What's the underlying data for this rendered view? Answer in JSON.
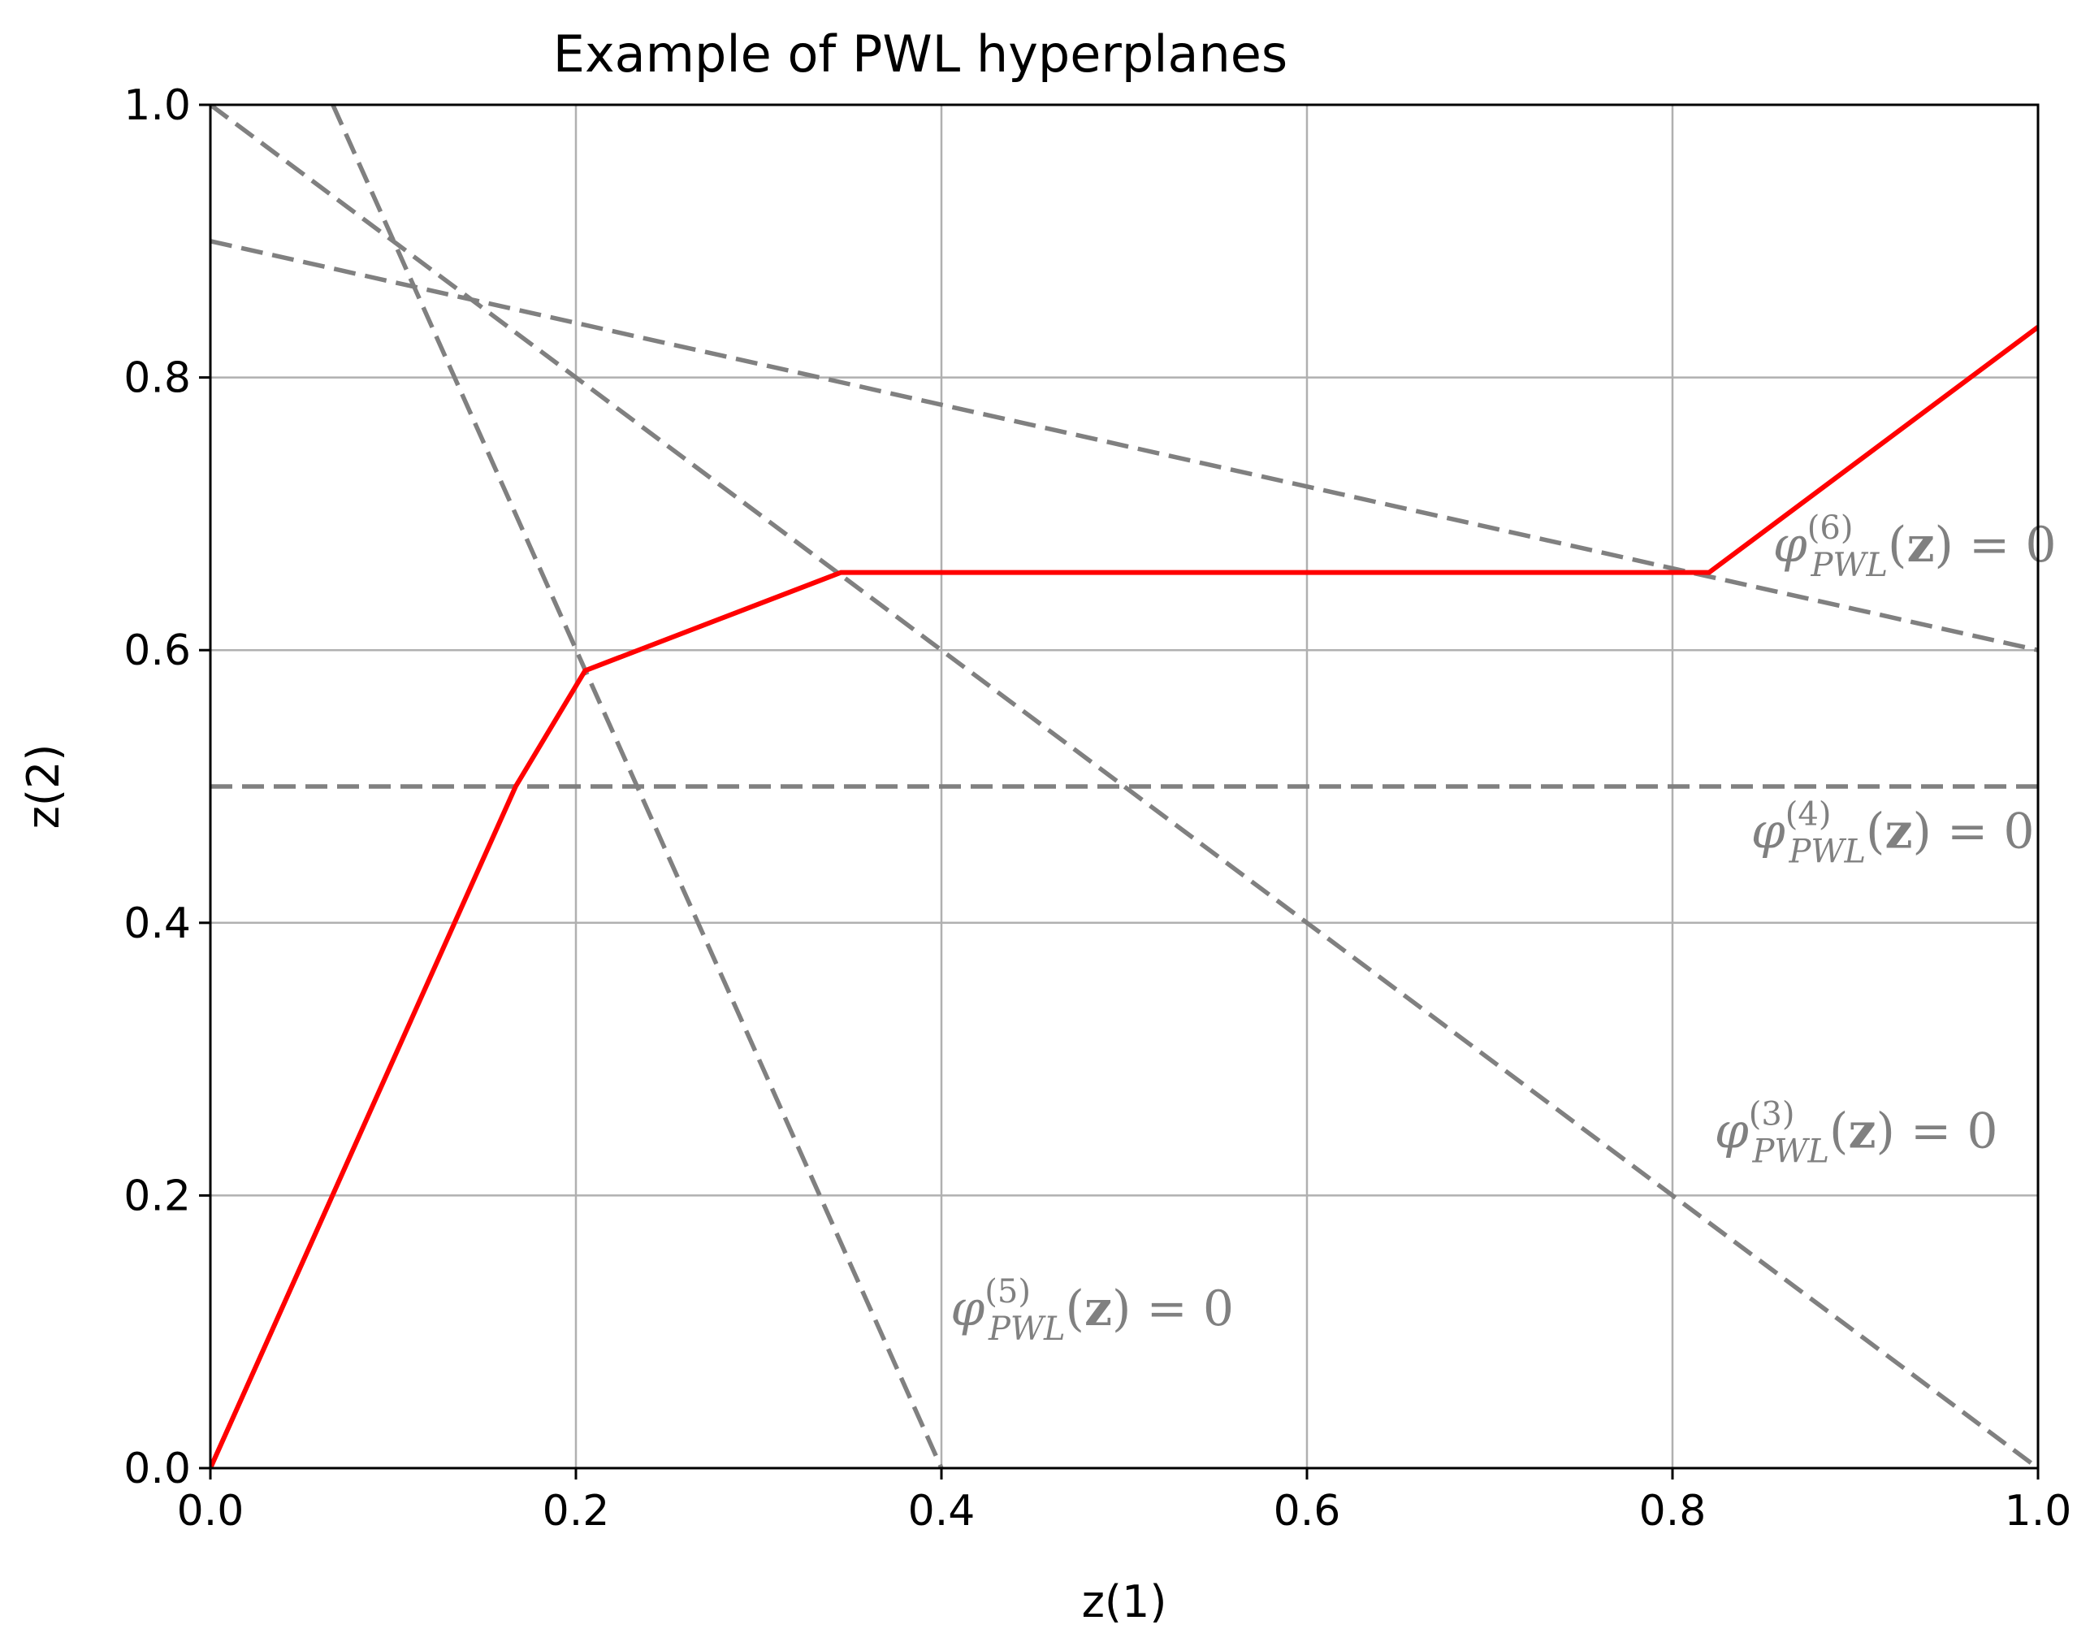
{
  "chart_data": {
    "type": "line",
    "title": "Example of PWL hyperplanes",
    "xlabel": "z(1)",
    "ylabel": "z(2)",
    "xlim": [
      0.0,
      1.0
    ],
    "ylim": [
      0.0,
      1.0
    ],
    "grid": true,
    "xticks": [
      0.0,
      0.2,
      0.4,
      0.6,
      0.8,
      1.0
    ],
    "xtick_labels": [
      "0.0",
      "0.2",
      "0.4",
      "0.6",
      "0.8",
      "1.0"
    ],
    "yticks": [
      0.0,
      0.2,
      0.4,
      0.6,
      0.8,
      1.0
    ],
    "ytick_labels": [
      "0.0",
      "0.2",
      "0.4",
      "0.6",
      "0.8",
      "1.0"
    ],
    "series": [
      {
        "name": "PWL function",
        "style": "solid",
        "color": "#ff0000",
        "x": [
          0.0,
          0.167,
          0.205,
          0.345,
          0.82,
          1.0
        ],
        "y": [
          0.0,
          0.5,
          0.585,
          0.657,
          0.657,
          0.837
        ]
      },
      {
        "name": "hyperplane 3",
        "style": "dashed",
        "color": "#808080",
        "x": [
          0.0,
          1.0
        ],
        "y": [
          1.0,
          0.0
        ]
      },
      {
        "name": "hyperplane 4",
        "style": "dashed",
        "color": "#808080",
        "x": [
          0.0,
          1.0
        ],
        "y": [
          0.5,
          0.5
        ]
      },
      {
        "name": "hyperplane 5",
        "style": "dashed",
        "color": "#808080",
        "x": [
          0.067,
          0.4
        ],
        "y": [
          1.0,
          0.0
        ]
      },
      {
        "name": "hyperplane 6",
        "style": "dashed",
        "color": "#808080",
        "x": [
          0.0,
          1.0
        ],
        "y": [
          0.9,
          0.6
        ]
      }
    ],
    "annotations": [
      {
        "id": "ann6",
        "sup": "(6)",
        "x": 0.855,
        "y": 0.665,
        "color": "#808080"
      },
      {
        "id": "ann4",
        "sup": "(4)",
        "x": 0.843,
        "y": 0.455,
        "color": "#808080"
      },
      {
        "id": "ann3",
        "sup": "(3)",
        "x": 0.823,
        "y": 0.235,
        "color": "#808080"
      },
      {
        "id": "ann5",
        "sup": "(5)",
        "x": 0.405,
        "y": 0.105,
        "color": "#808080"
      }
    ],
    "annotation_parts": {
      "phi": "φ",
      "sub": "PWL",
      "arg_open": "(",
      "arg": "z",
      "arg_close": ")",
      "rhs": " = 0"
    }
  }
}
